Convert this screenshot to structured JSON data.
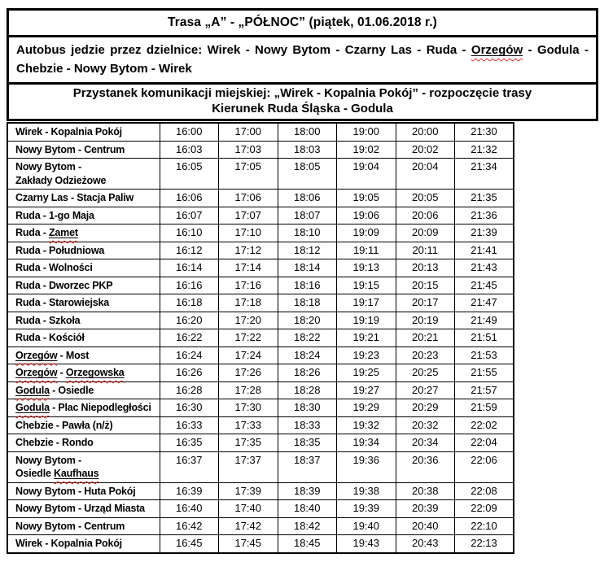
{
  "header": {
    "title": "Trasa „A” - „PÓŁNOC” (piątek, 01.06.2018 r.)",
    "districts_segments": [
      {
        "text": "Autobus jedzie przez dzielnice: Wirek - Nowy Bytom - Czarny Las - Ruda - "
      },
      {
        "text": "Orzegów",
        "marked": true
      },
      {
        "text": " - Godula - Chebzie - Nowy Bytom - Wirek"
      }
    ],
    "stop_line": "Przystanek komunikacji miejskiej: „Wirek - Kopalnia Pokój” - rozpoczęcie trasy",
    "direction_line": "Kierunek Ruda Śląska - Godula"
  },
  "colors": {
    "text": "#000000",
    "border": "#000000",
    "background": "#ffffff",
    "spellcheck_wavy": "#d93025"
  },
  "timetable": {
    "rows": [
      {
        "station": [
          {
            "text": "Wirek - Kopalnia Pokój"
          }
        ],
        "times": [
          "16:00",
          "17:00",
          "18:00",
          "19:00",
          "20:00",
          "21:30"
        ]
      },
      {
        "station": [
          {
            "text": "Nowy Bytom - Centrum"
          }
        ],
        "times": [
          "16:03",
          "17:03",
          "18:03",
          "19:02",
          "20:02",
          "21:32"
        ]
      },
      {
        "station": [
          {
            "text": "Nowy Bytom -"
          },
          {
            "br": true
          },
          {
            "text": "Zakłady Odzieżowe"
          }
        ],
        "times": [
          "16:05",
          "17:05",
          "18:05",
          "19:04",
          "20:04",
          "21:34"
        ]
      },
      {
        "station": [
          {
            "text": "Czarny Las - Stacja Paliw"
          }
        ],
        "times": [
          "16:06",
          "17:06",
          "18:06",
          "19:05",
          "20:05",
          "21:35"
        ]
      },
      {
        "station": [
          {
            "text": "Ruda - 1-go Maja"
          }
        ],
        "times": [
          "16:07",
          "17:07",
          "18:07",
          "19:06",
          "20:06",
          "21:36"
        ]
      },
      {
        "station": [
          {
            "text": "Ruda - "
          },
          {
            "text": "Zamet",
            "marked": true
          }
        ],
        "times": [
          "16:10",
          "17:10",
          "18:10",
          "19:09",
          "20:09",
          "21:39"
        ]
      },
      {
        "station": [
          {
            "text": "Ruda - Południowa"
          }
        ],
        "times": [
          "16:12",
          "17:12",
          "18:12",
          "19:11",
          "20:11",
          "21:41"
        ]
      },
      {
        "station": [
          {
            "text": "Ruda - Wolności"
          }
        ],
        "times": [
          "16:14",
          "17:14",
          "18:14",
          "19:13",
          "20:13",
          "21:43"
        ]
      },
      {
        "station": [
          {
            "text": "Ruda - Dworzec PKP"
          }
        ],
        "times": [
          "16:16",
          "17:16",
          "18:16",
          "19:15",
          "20:15",
          "21:45"
        ]
      },
      {
        "station": [
          {
            "text": "Ruda - Starowiejska"
          }
        ],
        "times": [
          "16:18",
          "17:18",
          "18:18",
          "19:17",
          "20:17",
          "21:47"
        ]
      },
      {
        "station": [
          {
            "text": "Ruda - Szkoła"
          }
        ],
        "times": [
          "16:20",
          "17:20",
          "18:20",
          "19:19",
          "20:19",
          "21:49"
        ]
      },
      {
        "station": [
          {
            "text": "Ruda - Kościół"
          }
        ],
        "times": [
          "16:22",
          "17:22",
          "18:22",
          "19:21",
          "20:21",
          "21:51"
        ]
      },
      {
        "station": [
          {
            "text": "Orzegów",
            "marked": true
          },
          {
            "text": " - Most"
          }
        ],
        "times": [
          "16:24",
          "17:24",
          "18:24",
          "19:23",
          "20:23",
          "21:53"
        ]
      },
      {
        "station": [
          {
            "text": "Orzegów",
            "marked": true
          },
          {
            "text": " - "
          },
          {
            "text": "Orzegowska",
            "marked": true
          }
        ],
        "times": [
          "16:26",
          "17:26",
          "18:26",
          "19:25",
          "20:25",
          "21:55"
        ]
      },
      {
        "station": [
          {
            "text": "Godula",
            "marked": true
          },
          {
            "text": " - Osiedle"
          }
        ],
        "times": [
          "16:28",
          "17:28",
          "18:28",
          "19:27",
          "20:27",
          "21:57"
        ]
      },
      {
        "station": [
          {
            "text": "Godula",
            "marked": true
          },
          {
            "text": " - Plac Niepodległości"
          }
        ],
        "times": [
          "16:30",
          "17:30",
          "18:30",
          "19:29",
          "20:29",
          "21:59"
        ]
      },
      {
        "station": [
          {
            "text": "Chebzie - Pawła (n/ż)"
          }
        ],
        "times": [
          "16:33",
          "17:33",
          "18:33",
          "19:32",
          "20:32",
          "22:02"
        ]
      },
      {
        "station": [
          {
            "text": "Chebzie - Rondo"
          }
        ],
        "times": [
          "16:35",
          "17:35",
          "18:35",
          "19:34",
          "20:34",
          "22:04"
        ]
      },
      {
        "station": [
          {
            "text": "Nowy Bytom -"
          },
          {
            "br": true
          },
          {
            "text": "Osiedle "
          },
          {
            "text": "Kaufhaus",
            "marked": true
          }
        ],
        "times": [
          "16:37",
          "17:37",
          "18:37",
          "19:36",
          "20:36",
          "22:06"
        ]
      },
      {
        "station": [
          {
            "text": "Nowy Bytom - Huta Pokój"
          }
        ],
        "times": [
          "16:39",
          "17:39",
          "18:39",
          "19:38",
          "20:38",
          "22:08"
        ]
      },
      {
        "station": [
          {
            "text": "Nowy Bytom - Urząd Miasta"
          }
        ],
        "times": [
          "16:40",
          "17:40",
          "18:40",
          "19:39",
          "20:39",
          "22:09"
        ]
      },
      {
        "station": [
          {
            "text": "Nowy Bytom - Centrum"
          }
        ],
        "times": [
          "16:42",
          "17:42",
          "18:42",
          "19:40",
          "20:40",
          "22:10"
        ]
      },
      {
        "station": [
          {
            "text": "Wirek - Kopalnia Pokój"
          }
        ],
        "times": [
          "16:45",
          "17:45",
          "18:45",
          "19:43",
          "20:43",
          "22:13"
        ]
      }
    ]
  }
}
